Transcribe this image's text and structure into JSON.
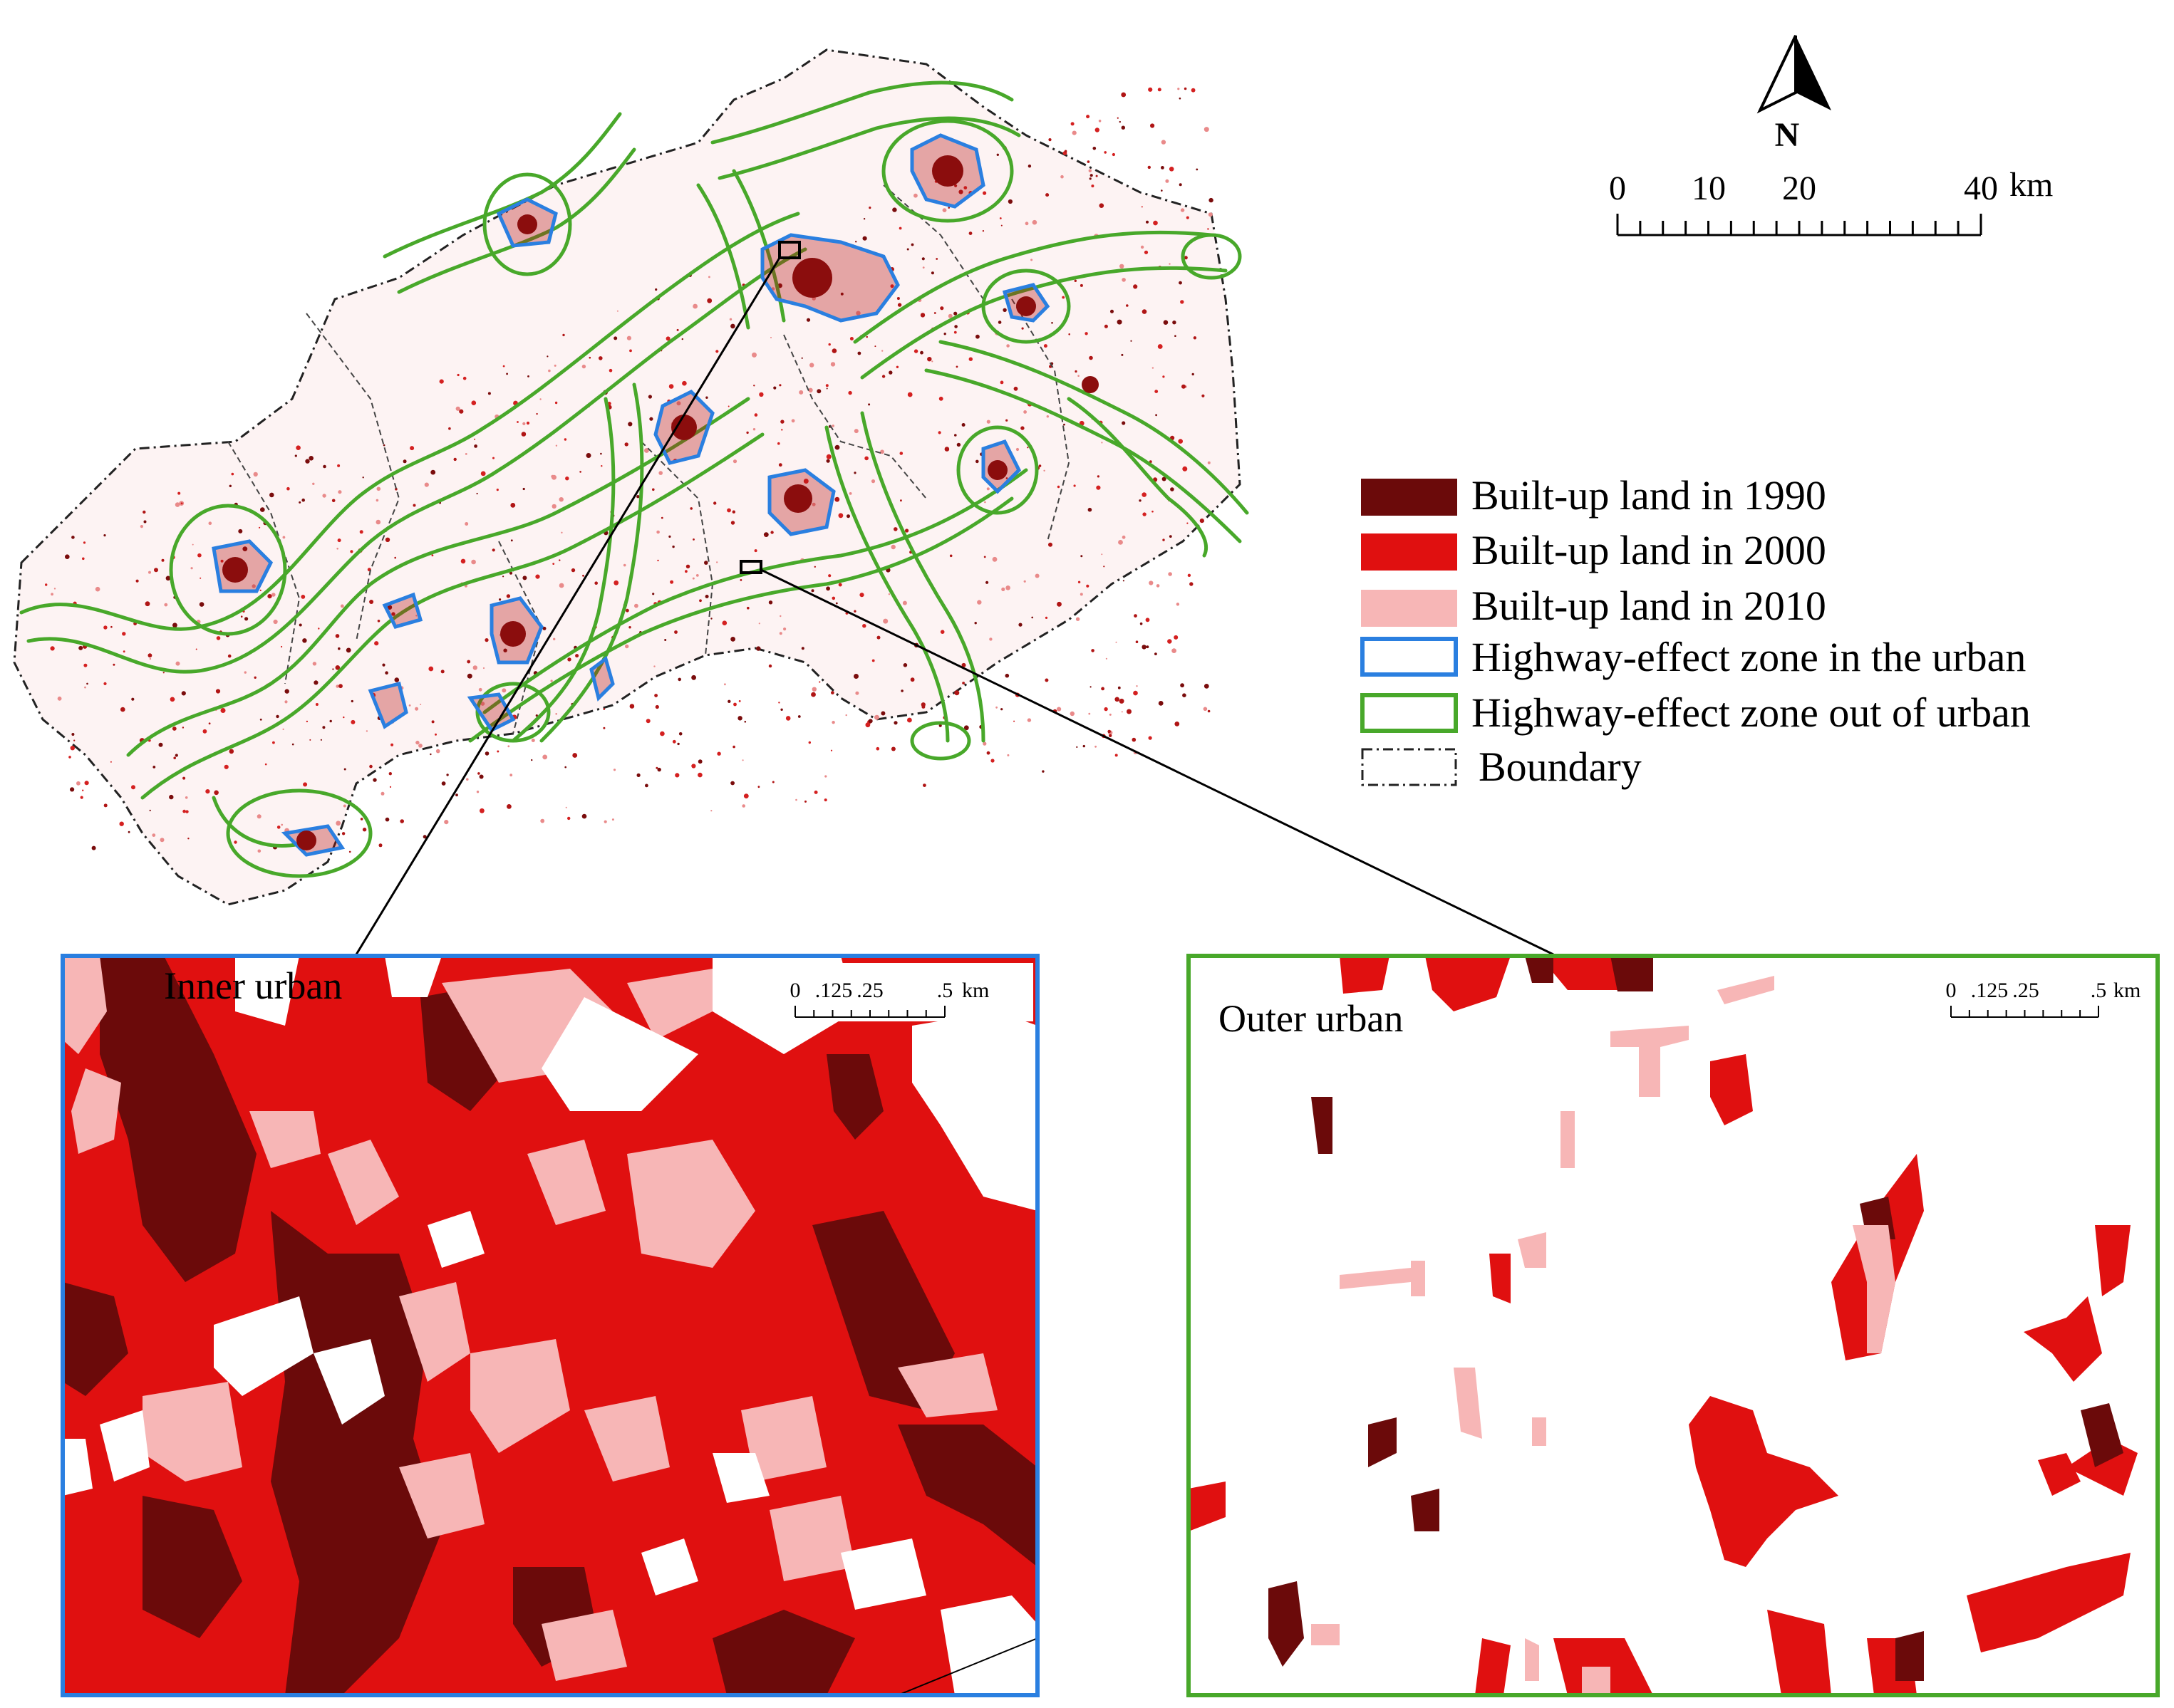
{
  "north_arrow": {
    "label": "N"
  },
  "scale_bar": {
    "ticks": [
      "0",
      "10",
      "20",
      "40"
    ],
    "unit": "km"
  },
  "legend": {
    "items": [
      {
        "label": "Built-up land in 1990",
        "kind": "fill",
        "color": "#6b0a0a"
      },
      {
        "label": "Built-up land in 2000",
        "kind": "fill",
        "color": "#e01010"
      },
      {
        "label": "Built-up land in 2010",
        "kind": "fill",
        "color": "#f7b6b6"
      },
      {
        "label": "Highway-effect zone in the urban",
        "kind": "outline",
        "color": "#2a7fe0"
      },
      {
        "label": "Highway-effect zone out of urban",
        "kind": "outline",
        "color": "#48a82a"
      },
      {
        "label": "Boundary",
        "kind": "dashed",
        "color": "#222222"
      }
    ]
  },
  "insets": {
    "inner": {
      "title": "Inner urban",
      "frame_color": "#2a7fe0",
      "scale": {
        "ticks": [
          "0",
          ".125",
          ".25",
          ".5"
        ],
        "unit": "km"
      }
    },
    "outer": {
      "title": "Outer urban",
      "frame_color": "#48a82a",
      "scale": {
        "ticks": [
          "0",
          ".125",
          ".25",
          ".5"
        ],
        "unit": "km"
      }
    }
  },
  "colors": {
    "built_1990": "#6b0a0a",
    "built_2000": "#e01010",
    "built_2010": "#f7b6b6",
    "zone_urban": "#2a7fe0",
    "zone_outer": "#48a82a",
    "boundary": "#222222"
  }
}
